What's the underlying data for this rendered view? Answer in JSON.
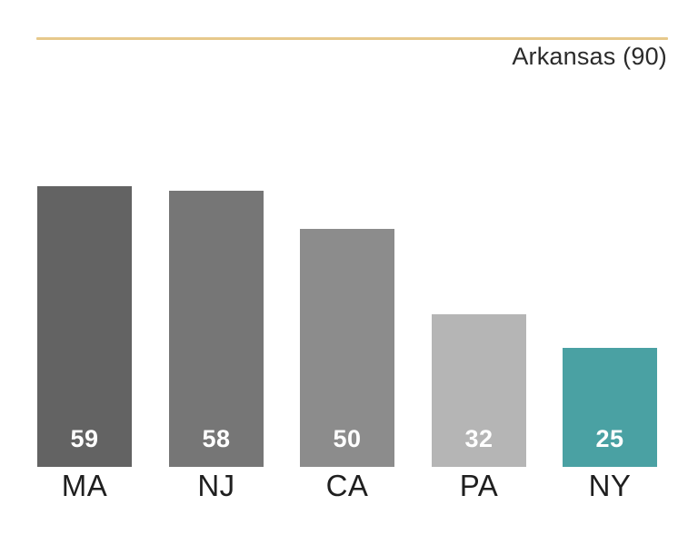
{
  "header": {
    "reference_label": "Arkansas (90)",
    "reference_line_color": "#e7c98b"
  },
  "chart_data": {
    "type": "bar",
    "title": "",
    "xlabel": "",
    "ylabel": "",
    "categories": [
      "MA",
      "NJ",
      "CA",
      "PA",
      "NY"
    ],
    "values": [
      59,
      58,
      50,
      32,
      25
    ],
    "bar_colors": [
      "#636363",
      "#767676",
      "#8c8c8c",
      "#b5b5b5",
      "#4aa1a3"
    ],
    "value_label_color": "#ffffff",
    "category_label_color": "#1f1f1f",
    "reference_line": {
      "label": "Arkansas (90)",
      "value": 90,
      "color": "#e7c98b",
      "position": "top"
    },
    "ylim": [
      0,
      90
    ],
    "grid": false,
    "legend": "none",
    "value_labels_position": "inside-bottom"
  }
}
